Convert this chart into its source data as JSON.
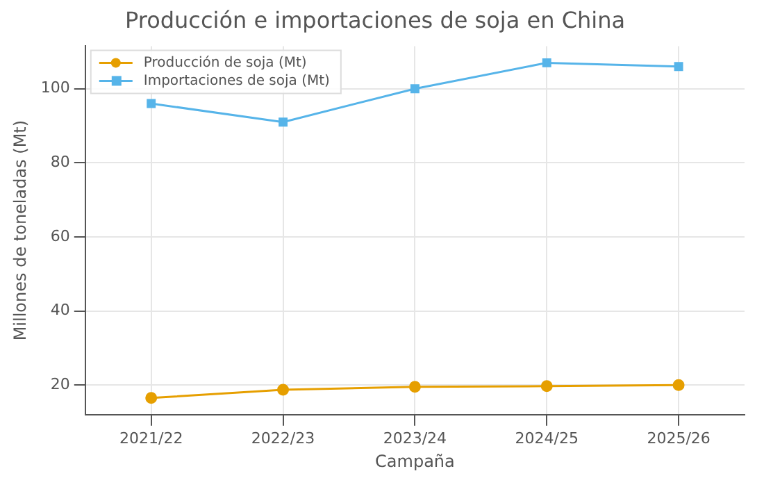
{
  "chart_data": {
    "type": "line",
    "title": "Producción e importaciones de soja en China",
    "xlabel": "Campaña",
    "ylabel": "Millones de toneladas (Mt)",
    "categories": [
      "2021/22",
      "2022/23",
      "2023/24",
      "2024/25",
      "2025/26"
    ],
    "series": [
      {
        "name": "Producción de soja (Mt)",
        "color": "#e69f00",
        "marker": "circle",
        "values": [
          16.5,
          18.7,
          19.5,
          19.7,
          20.0
        ]
      },
      {
        "name": "Importaciones de soja (Mt)",
        "color": "#56b4e9",
        "marker": "square",
        "values": [
          96,
          91,
          100,
          107,
          106
        ]
      }
    ],
    "ylim": [
      12,
      111.5
    ],
    "yticks": [
      20,
      40,
      60,
      80,
      100
    ],
    "grid": true,
    "legend": "top left"
  }
}
